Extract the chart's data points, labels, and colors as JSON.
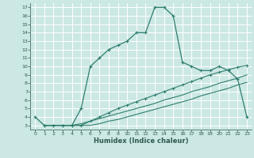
{
  "xlabel": "Humidex (Indice chaleur)",
  "bg_color": "#cce8e4",
  "grid_color": "#ffffff",
  "line_color": "#2e7d6e",
  "xlim": [
    -0.5,
    23.5
  ],
  "ylim": [
    2.5,
    17.5
  ],
  "xticks": [
    0,
    1,
    2,
    3,
    4,
    5,
    6,
    7,
    8,
    9,
    10,
    11,
    12,
    13,
    14,
    15,
    16,
    17,
    18,
    19,
    20,
    21,
    22,
    23
  ],
  "yticks": [
    3,
    4,
    5,
    6,
    7,
    8,
    9,
    10,
    11,
    12,
    13,
    14,
    15,
    16,
    17
  ],
  "curve1_x": [
    0,
    1,
    2,
    3,
    4,
    5,
    6,
    7,
    8,
    9,
    10,
    11,
    12,
    13,
    14,
    15,
    16,
    17,
    18,
    19,
    20,
    21,
    22,
    23
  ],
  "curve1_y": [
    4,
    3,
    3,
    3,
    3,
    5,
    10,
    11,
    12,
    12.5,
    13,
    14,
    14,
    17,
    17,
    16,
    10.5,
    10,
    9.5,
    9.5,
    10,
    9.5,
    8.5,
    4
  ],
  "curve2_x": [
    1,
    2,
    3,
    4,
    5,
    6,
    7,
    8,
    9,
    10,
    11,
    12,
    13,
    14,
    15,
    16,
    17,
    18,
    19,
    20,
    21,
    22,
    23
  ],
  "curve2_y": [
    3,
    3,
    3,
    3,
    3,
    3,
    3.2,
    3.5,
    3.7,
    4.0,
    4.3,
    4.6,
    4.9,
    5.2,
    5.5,
    5.8,
    6.1,
    6.5,
    6.8,
    7.1,
    7.4,
    7.8,
    8.1
  ],
  "curve3_x": [
    1,
    2,
    3,
    4,
    5,
    6,
    7,
    8,
    9,
    10,
    11,
    12,
    13,
    14,
    15,
    16,
    17,
    18,
    19,
    20,
    21,
    22,
    23
  ],
  "curve3_y": [
    3,
    3,
    3,
    3,
    3,
    3.5,
    4.0,
    4.5,
    5.0,
    5.4,
    5.8,
    6.2,
    6.6,
    7.0,
    7.4,
    7.8,
    8.2,
    8.6,
    9.0,
    9.3,
    9.6,
    9.9,
    10.1
  ],
  "curve4_x": [
    1,
    2,
    3,
    4,
    5,
    6,
    7,
    8,
    9,
    10,
    11,
    12,
    13,
    14,
    15,
    16,
    17,
    18,
    19,
    20,
    21,
    22,
    23
  ],
  "curve4_y": [
    3,
    3,
    3,
    3,
    3.2,
    3.5,
    3.8,
    4.1,
    4.4,
    4.7,
    5.0,
    5.3,
    5.6,
    6.0,
    6.3,
    6.6,
    7.0,
    7.3,
    7.6,
    8.0,
    8.3,
    8.6,
    9.0
  ]
}
